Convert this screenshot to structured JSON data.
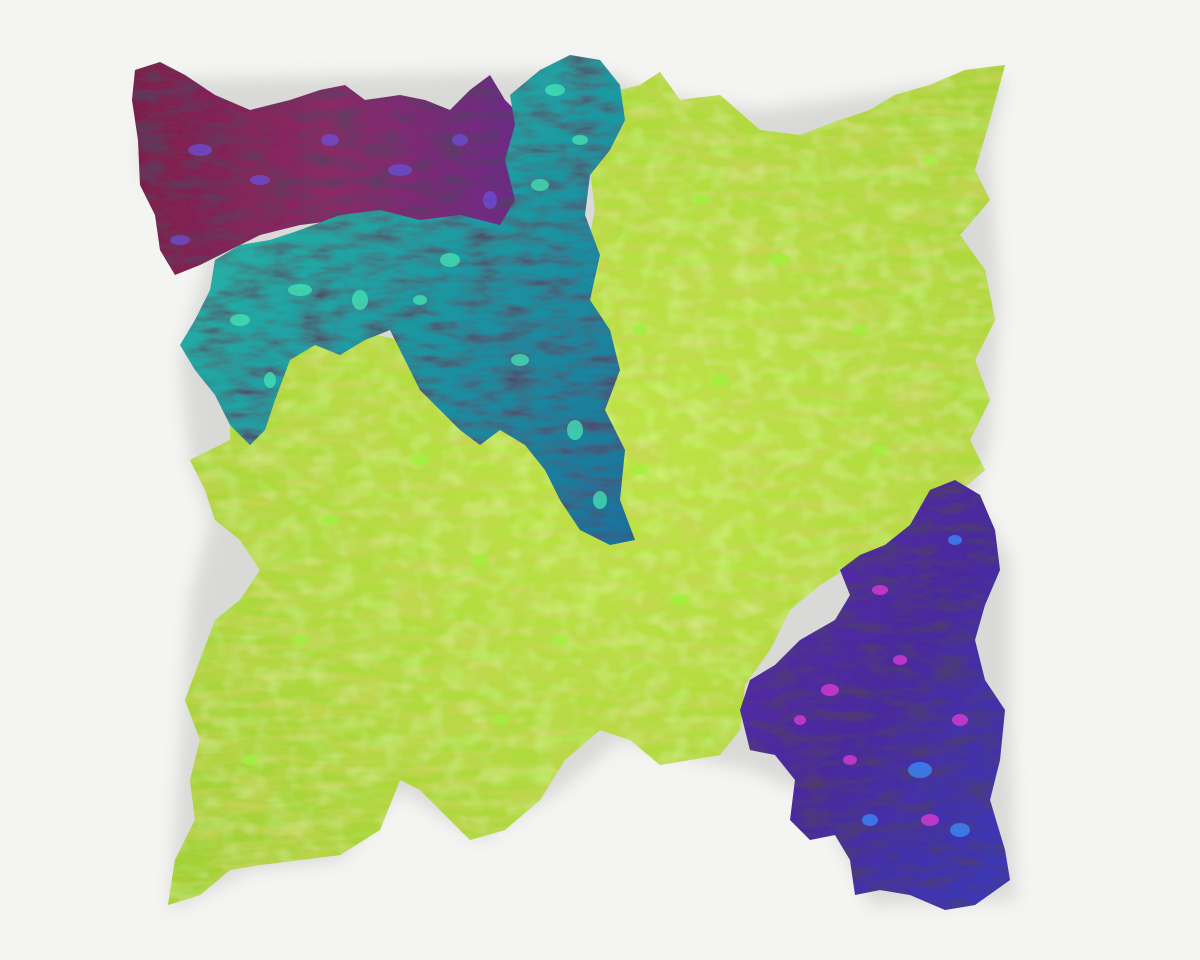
{
  "photo": {
    "wall_color": "#f4f4f2",
    "shadow_color": "#cfcfcc",
    "pieces": [
      {
        "name": "green-panel",
        "base": "#a6d63a",
        "highlight": "#c8ee4a",
        "streak": "#c98a2e",
        "blob": "#9ff23c"
      },
      {
        "name": "maroon-panel",
        "base": "#8a2650",
        "highlight": "#6a3fc0",
        "streak": "#4a1030",
        "blob": "#6b4fd8"
      },
      {
        "name": "teal-panel",
        "base": "#1f9a9a",
        "highlight": "#39d9b8",
        "streak": "#0f4f66",
        "blob": "#46e4b4"
      },
      {
        "name": "violet-panel",
        "base": "#4a2a9a",
        "highlight": "#d63ad8",
        "streak": "#2a1260",
        "blob": "#3a8cff"
      }
    ]
  }
}
